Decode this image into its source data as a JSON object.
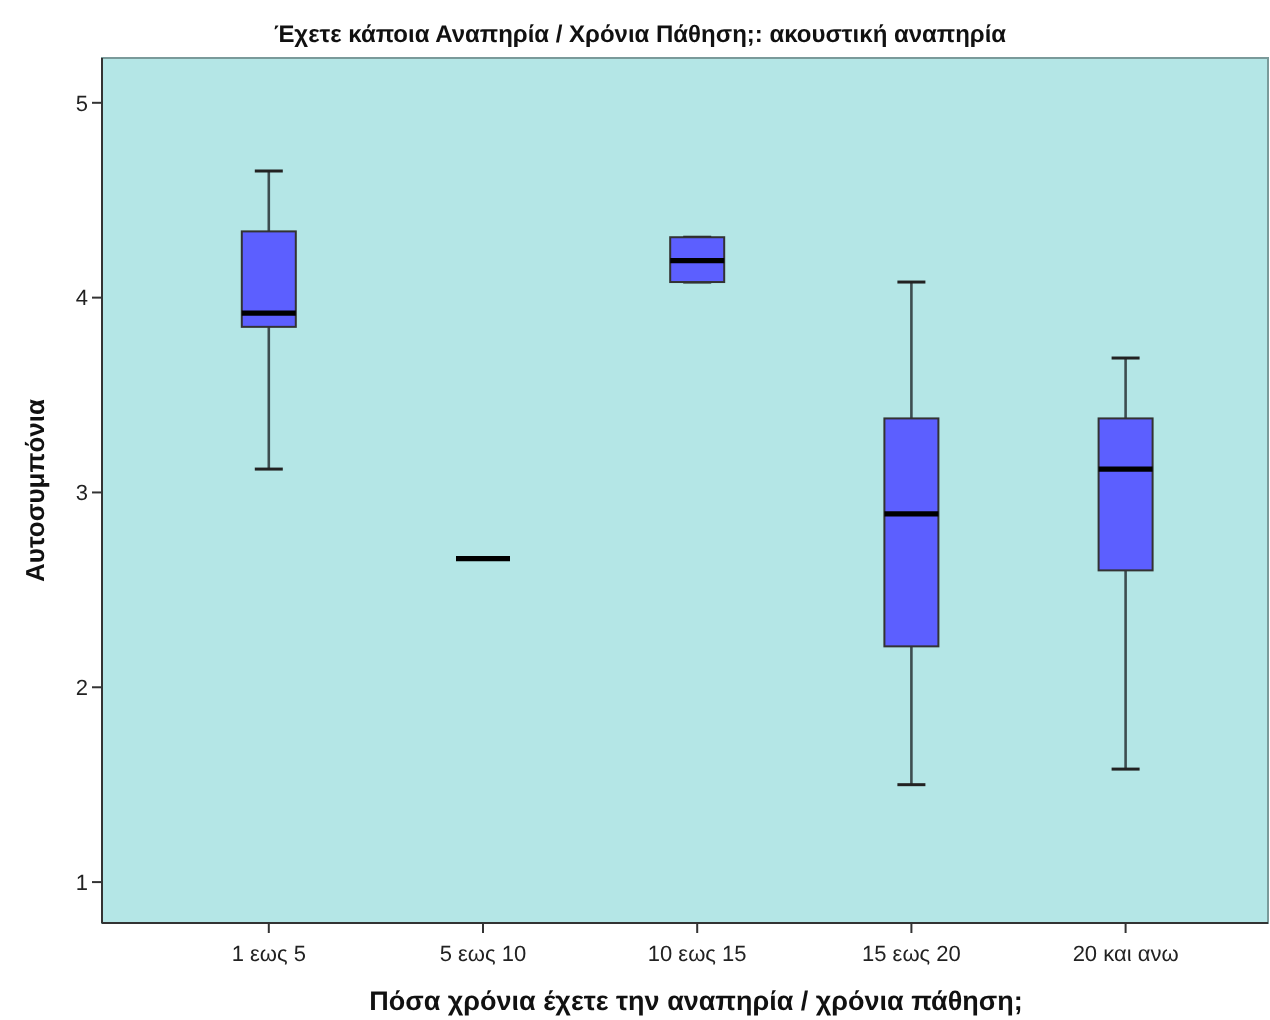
{
  "chart_data": {
    "type": "box",
    "title": "Έχετε κάποια Αναπηρία / Χρόνια Πάθηση;: ακουστική αναπηρία",
    "xlabel": "Πόσα χρόνια έχετε την αναπηρία / χρόνια πάθηση;",
    "ylabel": "Αυτοσυμπόνια",
    "categories": [
      "1 εως 5",
      "5 εως 10",
      "10 εως 15",
      "15 εως 20",
      "20 και ανω"
    ],
    "boxes": [
      {
        "low": 3.12,
        "q1": 3.85,
        "median": 3.92,
        "q3": 4.34,
        "high": 4.65
      },
      {
        "low": 2.66,
        "q1": 2.66,
        "median": 2.66,
        "q3": 2.66,
        "high": 2.66
      },
      {
        "low": 4.08,
        "q1": 4.08,
        "median": 4.19,
        "q3": 4.31,
        "high": 4.31
      },
      {
        "low": 1.5,
        "q1": 2.21,
        "median": 2.89,
        "q3": 3.38,
        "high": 4.08
      },
      {
        "low": 1.58,
        "q1": 2.6,
        "median": 3.12,
        "q3": 3.38,
        "high": 3.69
      }
    ],
    "colors": [
      "#5c5fff",
      "#000000",
      "#5c5fff",
      "#5c5fff",
      "#5c5fff"
    ],
    "ylim": [
      0.79,
      5.23
    ],
    "yticks": [
      1,
      2,
      3,
      4,
      5
    ]
  }
}
